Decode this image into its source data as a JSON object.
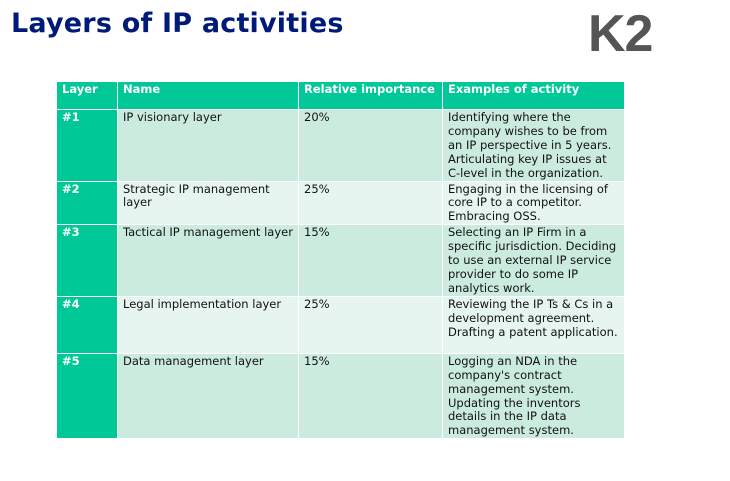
{
  "slide": {
    "title": "Layers of IP activities",
    "logo": "K2"
  },
  "table": {
    "headers": [
      "Layer",
      "Name",
      "Relative importance",
      "Examples of activity"
    ],
    "rows": [
      {
        "layer": "#1",
        "name": "IP visionary layer",
        "importance": "20%",
        "examples": "Identifying where the company wishes to be from an IP perspective in 5 years. Articulating key IP issues at C-level in the organization."
      },
      {
        "layer": "#2",
        "name": "Strategic IP management layer",
        "importance": "25%",
        "examples": "Engaging in the licensing of core IP to a competitor. Embracing OSS."
      },
      {
        "layer": "#3",
        "name": "Tactical IP management layer",
        "importance": "15%",
        "examples": "Selecting an IP Firm in a specific jurisdiction. Deciding to use an external IP service provider to do some IP analytics work."
      },
      {
        "layer": "#4",
        "name": "Legal implementation layer",
        "importance": "25%",
        "examples": "Reviewing the IP Ts & Cs in a development agreement. Drafting a patent application."
      },
      {
        "layer": "#5",
        "name": "Data management layer",
        "importance": "15%",
        "examples": "Logging an NDA in the company's contract management system. Updating the inventors details in the IP data management system."
      }
    ]
  },
  "colors": {
    "title": "#001a7a",
    "logo": "#555555",
    "header": "#00c897",
    "row_dark": "#cbebdf",
    "row_light": "#e6f5ef"
  }
}
